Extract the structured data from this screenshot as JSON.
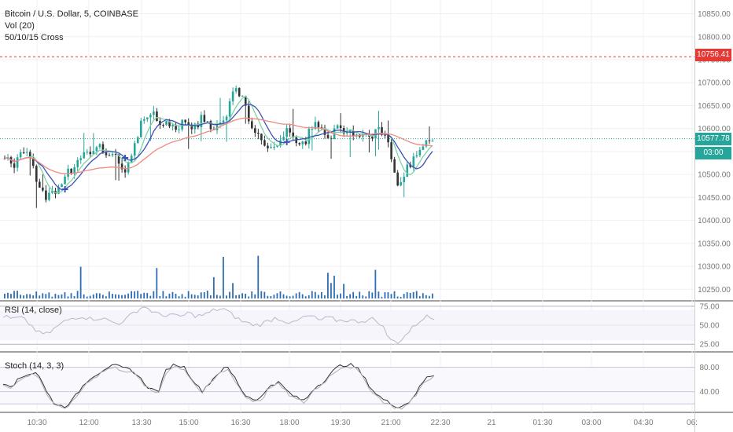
{
  "legend": {
    "symbol": "Bitcoin / U.S. Dollar, 5, COINBASE",
    "volume": "Vol (20)",
    "cross": "50/10/15 Cross"
  },
  "rsi_label": "RSI (14, close)",
  "stoch_label": "Stoch (14, 3, 3)",
  "tags": {
    "dashed_level": "10756.41",
    "last_price": "10577.78",
    "countdown": "03:00"
  },
  "colors": {
    "up": "#26a69a",
    "down": "#333333",
    "ma_fast": "#3f51b5",
    "ma_mid": "#7dd3a8",
    "ma_slow": "#ef8a80",
    "volume_bar": "#2e6db4",
    "dashed_level": "#e53935",
    "last_price": "#26a69a"
  },
  "chart_data": [
    {
      "type": "candlestick",
      "title": "Bitcoin / U.S. Dollar, 5, COINBASE",
      "ylim": [
        10230,
        10880
      ],
      "y_ticks": [
        10850,
        10800,
        10750,
        10700,
        10650,
        10600,
        10550,
        10500,
        10450,
        10400,
        10350,
        10300,
        10250
      ],
      "x_ticks": [
        "10:30",
        "12:00",
        "13:30",
        "15:00",
        "16:30",
        "18:00",
        "19:30",
        "21:00",
        "22:30",
        "21",
        "01:30",
        "03:00",
        "04:30",
        "06:"
      ],
      "anchors": [
        10535,
        10520,
        10560,
        10545,
        10470,
        10450,
        10470,
        10495,
        10515,
        10540,
        10545,
        10560,
        10550,
        10540,
        10510,
        10545,
        10620,
        10640,
        10615,
        10620,
        10595,
        10620,
        10600,
        10620,
        10610,
        10600,
        10640,
        10690,
        10660,
        10590,
        10580,
        10550,
        10575,
        10600,
        10580,
        10565,
        10610,
        10600,
        10580,
        10610,
        10590,
        10595,
        10575,
        10585,
        10600,
        10555,
        10480,
        10510,
        10540,
        10570,
        10580
      ],
      "last_price": 10577.78,
      "dashed_level": 10756.41,
      "indicators": [
        "MA fast",
        "MA mid",
        "MA slow",
        "Vol (20)"
      ]
    },
    {
      "type": "line",
      "title": "RSI (14, close)",
      "ylim": [
        18,
        80
      ],
      "y_ticks": [
        75,
        50,
        25
      ],
      "anchors": [
        62,
        58,
        60,
        52,
        40,
        38,
        47,
        55,
        60,
        62,
        58,
        60,
        56,
        52,
        58,
        68,
        75,
        68,
        62,
        65,
        60,
        66,
        62,
        64,
        70,
        72,
        64,
        56,
        52,
        50,
        55,
        60,
        56,
        52,
        60,
        62,
        56,
        60,
        56,
        57,
        55,
        56,
        58,
        52,
        30,
        28,
        40,
        52,
        62,
        58
      ]
    },
    {
      "type": "line",
      "title": "Stoch (14, 3, 3)",
      "ylim": [
        10,
        100
      ],
      "y_ticks": [
        80,
        40
      ],
      "anchors": [
        55,
        50,
        62,
        70,
        72,
        40,
        20,
        15,
        25,
        45,
        62,
        70,
        80,
        82,
        78,
        75,
        60,
        45,
        40,
        78,
        85,
        80,
        60,
        40,
        55,
        72,
        80,
        60,
        35,
        28,
        30,
        52,
        55,
        40,
        30,
        25,
        45,
        55,
        70,
        82,
        85,
        80,
        60,
        40,
        28,
        20,
        15,
        22,
        40,
        62,
        68
      ]
    }
  ]
}
